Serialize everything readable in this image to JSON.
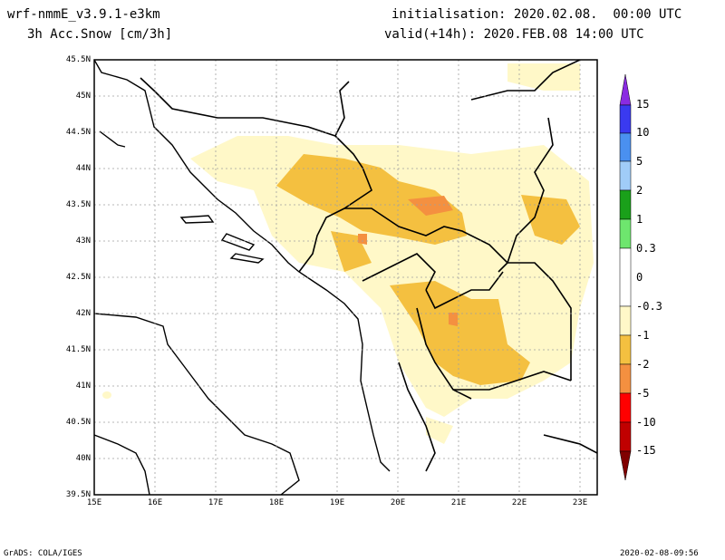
{
  "header": {
    "model": "wrf-nmmE_v3.9.1-e3km",
    "field": "3h Acc.Snow [cm/3h]",
    "init": "initialisation: 2020.02.08.  00:00 UTC",
    "valid": "valid(+14h): 2020.FEB.08 14:00 UTC"
  },
  "footer": {
    "left": "GrADS: COLA/IGES",
    "right": "2020-02-08-09:56"
  },
  "axes": {
    "lat_labels": [
      "45.5N",
      "45N",
      "44.5N",
      "44N",
      "43.5N",
      "43N",
      "42.5N",
      "42N",
      "41.5N",
      "41N",
      "40.5N",
      "40N",
      "39.5N"
    ],
    "lon_labels": [
      "15E",
      "16E",
      "17E",
      "18E",
      "19E",
      "20E",
      "21E",
      "22E",
      "23E"
    ],
    "grid": true,
    "lat_range": [
      39.5,
      45.5
    ],
    "lon_range": [
      15,
      23.3
    ]
  },
  "colorbar": {
    "labels": [
      "15",
      "10",
      "5",
      "2",
      "1",
      "0.3",
      "0",
      "-0.3",
      "-1",
      "-2",
      "-5",
      "-10",
      "-15"
    ],
    "colors": [
      "#8a2be2",
      "#3a3af0",
      "#4a90f0",
      "#a0ccf8",
      "#1aa01a",
      "#6ee66e",
      "#ffffff",
      "#fff8c8",
      "#f4c040",
      "#f49040",
      "#ff0000",
      "#c00000",
      "#800000"
    ]
  }
}
